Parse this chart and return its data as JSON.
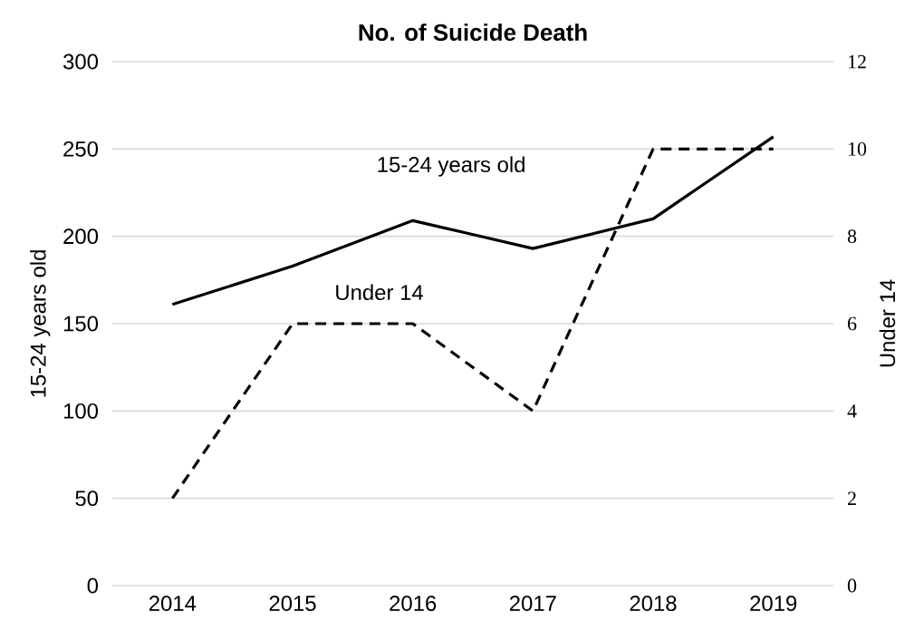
{
  "chart_data": {
    "type": "line",
    "title": "No. of Suicide Death",
    "categories": [
      "2014",
      "2015",
      "2016",
      "2017",
      "2018",
      "2019"
    ],
    "ylabel": "15-24 years old",
    "y2label": "Under 14",
    "ylim": [
      0,
      300
    ],
    "yticks": [
      0,
      50,
      100,
      150,
      200,
      250,
      300
    ],
    "y2lim": [
      0,
      12
    ],
    "y2ticks": [
      0,
      2,
      4,
      6,
      8,
      10,
      12
    ],
    "grid": "y",
    "legend": false,
    "marker": "none",
    "series": [
      {
        "name": "15-24 years old",
        "color": "#000000",
        "line_style": "solid",
        "values": [
          161,
          183,
          209,
          193,
          210,
          257
        ]
      },
      {
        "name": "Under 14",
        "color": "#000000",
        "line_style": "dashed",
        "axis": "y2",
        "values": [
          2,
          6,
          6,
          4,
          10,
          10
        ]
      }
    ]
  }
}
